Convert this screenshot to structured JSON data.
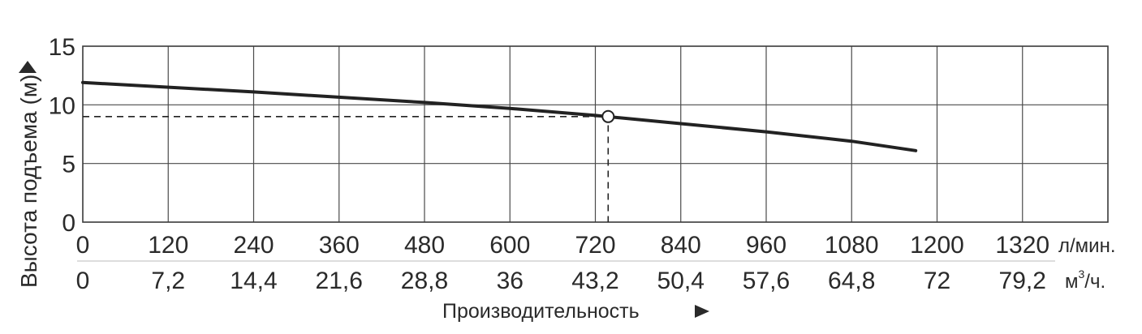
{
  "chart_data": {
    "type": "line",
    "ylabel": "Высота подъема (м)",
    "xlabel": "Производительность",
    "ylim": [
      0,
      15
    ],
    "yticks": [
      "0",
      "5",
      "10",
      "15"
    ],
    "xlim": [
      0,
      1440
    ],
    "x_ticks_lpm": [
      "0",
      "120",
      "240",
      "360",
      "480",
      "600",
      "720",
      "840",
      "960",
      "1080",
      "1200",
      "1320"
    ],
    "x_ticks_m3h": [
      "0",
      "7,2",
      "14,4",
      "21,6",
      "28,8",
      "36",
      "43,2",
      "50,4",
      "57,6",
      "64,8",
      "72",
      "79,2"
    ],
    "x_unit_primary": "л/мин.",
    "x_unit_secondary_base": "м",
    "x_unit_secondary_sup": "3",
    "x_unit_secondary_rest": "/ч.",
    "grid": true,
    "series": [
      {
        "x": [
          0,
          240,
          480,
          600,
          720,
          840,
          960,
          1080,
          1170
        ],
        "y": [
          11.9,
          11.1,
          10.2,
          9.7,
          9.1,
          8.4,
          7.7,
          6.9,
          6.1
        ]
      }
    ],
    "highlight_point": {
      "x": 738,
      "y": 9.0
    }
  }
}
